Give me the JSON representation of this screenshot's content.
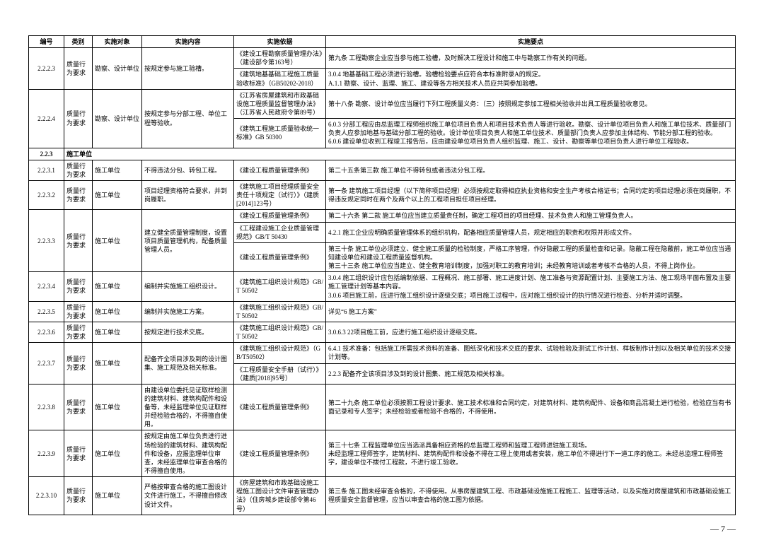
{
  "headers": [
    "编号",
    "类别",
    "实施对象",
    "实施内容",
    "实施依据",
    "实施要点"
  ],
  "page_number": "— 7 —",
  "rows": [
    {
      "id": "2.2.2.3",
      "cat": "质量行为要求",
      "obj": "勘察、设计单位",
      "content": "按规定参与施工验槽。",
      "basis_rows": [
        "《建设工程勘察质量管理办法》（建设部令第163号）",
        "《建筑地基基础工程施工质量验收标准》（GB50202-2018）"
      ],
      "points_rows": [
        "第九条 工程勘察企业应当参与施工验槽，及时解决工程设计和施工中与勘察工作有关的问题。",
        "3.0.4 地基基础工程必须进行验槽。验槽检验要点应符合本标准附录A的规定。\nA.1.1 勘察、设计、监理、施工、建设等各方相关技术人员应共同参加验槽。"
      ]
    },
    {
      "id": "2.2.2.4",
      "cat": "质量行为要求",
      "obj": "勘察、设计单位",
      "content": "按规定参与分部工程、单位工程等验收。",
      "basis_rows": [
        "《江苏省房屋建筑和市政基础设施工程质量监督管理办法》（江苏省人民政府令第89号）",
        "《建筑工程施工质量验收统一标准》GB 50300"
      ],
      "points_rows": [
        "第十八条 勘察、设计单位应当履行下列工程质量义务：（三）按照规定参加工程相关验收并出具工程质量验收意见。",
        "6.0.3 分部工程应由总监理工程师组织施工单位项目负责人和项目技术负责人等进行验收。勘察、设计单位项目负责人和施工单位技术、质量部门负责人应参加地基与基础分部工程的验收。设计单位项目负责人和施工单位技术、质量部门负责人应参加主体结构、节能分部工程的验收。\n6.0.6 建设单位收到工程竣工报告后，应由建设单位项目负责人组织监理、施工、设计、勘察等单位项目负责人进行单位工程验收。"
      ]
    },
    {
      "section": "2.2.3",
      "label": "施工单位"
    },
    {
      "id": "2.2.3.1",
      "cat": "质量行为要求",
      "obj": "施工单位",
      "content": "不得违法分包、转包工程。",
      "basis_rows": [
        "《建设工程质量管理条例》"
      ],
      "points_rows": [
        "第二十五条第三款 施工单位不得转包或者违法分包工程。"
      ]
    },
    {
      "id": "2.2.3.2",
      "cat": "质量行为要求",
      "obj": "施工单位",
      "content": "项目经理资格符合要求，并到岗履职。",
      "basis_rows": [
        "《建筑施工项目经理质量安全责任十项规定（试行）》（建质[2014]123号）"
      ],
      "points_rows": [
        "第一条 建筑施工项目经理（以下简称项目经理）必须按规定取得相应执业资格和安全生产考核合格证书；合同约定的项目经理必须在岗履职，不得违反规定同时在两个及两个以上的工程项目担任项目经理。"
      ]
    },
    {
      "id": "2.2.3.3",
      "cat": "质量行为要求",
      "obj": "施工单位",
      "content": "建立健全质量管理制度，设置项目质量管理机构，配备质量管理人员。",
      "basis_rows": [
        "《建设工程质量管理条例》",
        "《工程建设施工企业质量管理规范》GB/T 50430",
        "《建设工程质量管理条例》"
      ],
      "points_rows": [
        "第二十六条 第二款 施工单位应当建立质量责任制，确定工程项目的项目经理、技术负责人和施工管理负责人。",
        "4.2.1 施工企业应明确质量管理体系的组织机构，配备相应质量管理人员，规定相应的职责和权限并形成文件。",
        "第三十条 施工单位必须建立、健全施工质量的检验制度，严格工序管理，作好隐蔽工程的质量检查和记录。隐蔽工程在隐蔽前，施工单位应当通知建设单位和建设工程质量监督机构。\n第三十三条 施工单位应当建立、健全教育培训制度，加强对职工的教育培训；未经教育培训或者考核不合格的人员，不得上岗作业。"
      ]
    },
    {
      "id": "2.2.3.4",
      "cat": "质量行为要求",
      "obj": "施工单位",
      "content": "编制并实施施工组织设计。",
      "basis_rows": [
        "《建筑施工组织设计规范》GB/T 50502"
      ],
      "points_rows": [
        "3.0.4 施工组织设计应包括编制依据、工程概况、施工部署、施工进度计划、施工准备与资源配置计划、主要施工方法、施工现场平面布置及主要施工管理计划等基本内容。\n3.0.6 项目施工前，应进行施工组织设计逐级交底；项目施工过程中，应对施工组织设计的执行情况进行检查、分析并适时调整。"
      ]
    },
    {
      "id": "2.2.3.5",
      "cat": "质量行为要求",
      "obj": "施工单位",
      "content": "编制并实施施工方案。",
      "basis_rows": [
        "《建筑施工组织设计规范》GB/T 50502"
      ],
      "points_rows": [
        "详见“6 施工方案”"
      ]
    },
    {
      "id": "2.2.3.6",
      "cat": "质量行为要求",
      "obj": "施工单位",
      "content": "按规定进行技术交底。",
      "basis_rows": [
        "《建筑施工组织设计规范》GB/T 50502"
      ],
      "points_rows": [
        "3.0.6.3 22项目施工前，应进行施工组织设计逐级交底。"
      ]
    },
    {
      "id": "2.2.3.7",
      "cat": "质量行为要求",
      "obj": "施工单位",
      "content": "配备齐全项目涉及到的设计图集、施工规范及相关标准。",
      "basis_rows": [
        "《建筑施工组织设计规范》（GB/T50502）",
        "《工程质量安全手册（试行）》（建质[2018]95号）"
      ],
      "points_rows": [
        "6.4.1 技术准备：包括施工所需技术资料的准备、图纸深化和技术交底的要求、试验检验及测试工作计划、样板制作计划以及相关单位的技术交接计划等。",
        "2.2.3 配备齐全该项目涉及到的设计图集、施工规范及相关标准。"
      ]
    },
    {
      "id": "2.2.3.8",
      "cat": "质量行为要求",
      "obj": "施工单位",
      "content": "由建设单位委托见证取样检测的建筑材料、建筑构配件和设备等，未经监理单位见证取样并经检验合格的，不得擅自使用。",
      "basis_rows": [
        "《建设工程质量管理条例》"
      ],
      "points_rows": [
        "第二十九条 施工单位必须按照工程设计要求、施工技术标准和合同约定，对建筑材料、建筑构配件、设备和商品混凝土进行检验，检验应当有书面记录和专人签字；未经检验或者检验不合格的，不得使用。"
      ]
    },
    {
      "id": "2.2.3.9",
      "cat": "质量行为要求",
      "obj": "施工单位",
      "content": "按规定由施工单位负责进行进场检验的建筑材料、建筑构配件和设备，应报监理单位审查，未经监理单位审查合格的不得擅自使用。",
      "basis_rows": [
        "《建设工程质量管理条例》"
      ],
      "points_rows": [
        "第三十七条 工程监理单位应当选派具备相应资格的总监理工程师和监理工程师进驻施工现场。\n未经监理工程师签字，建筑材料、建筑构配件和设备不得在工程上使用或者安装，施工单位不得进行下一道工序的施工。未经总监理工程师签字，建设单位不拨付工程款，不进行竣工验收。"
      ]
    },
    {
      "id": "2.2.3.10",
      "cat": "质量行为要求",
      "obj": "施工单位",
      "content": "严格按审查合格的施工图设计文件进行施工，不得擅自修改设计文件。",
      "basis_rows": [
        "《房屋建筑和市政基础设施工程施工图设计文件审查管理办法》（住房城乡建设部令第46号）"
      ],
      "points_rows": [
        "第三条 施工图未经审查合格的，不得使用。从事房屋建筑工程、市政基础设施施工程施工、监理等活动，以及实施对房屋建筑和市政基础设施工程质量安全监督管理，应当以审查合格的施工图为依据。"
      ]
    }
  ]
}
